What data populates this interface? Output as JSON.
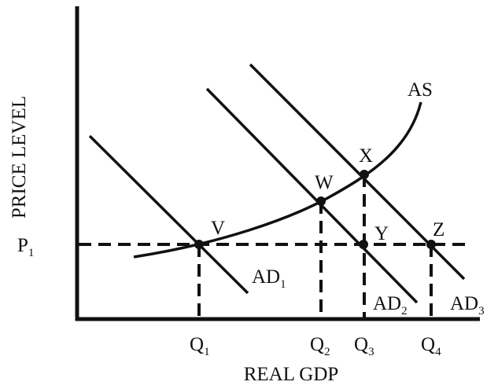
{
  "axes": {
    "y_label": "PRICE LEVEL",
    "x_label": "REAL GDP"
  },
  "price_label": {
    "base": "P",
    "sub": "1"
  },
  "quantity_labels": [
    {
      "base": "Q",
      "sub": "1"
    },
    {
      "base": "Q",
      "sub": "2"
    },
    {
      "base": "Q",
      "sub": "3"
    },
    {
      "base": "Q",
      "sub": "4"
    }
  ],
  "curves": {
    "as": "AS",
    "ad": [
      {
        "base": "AD",
        "sub": "1"
      },
      {
        "base": "AD",
        "sub": "2"
      },
      {
        "base": "AD",
        "sub": "3"
      }
    ]
  },
  "points": [
    "V",
    "W",
    "X",
    "Y",
    "Z"
  ]
}
